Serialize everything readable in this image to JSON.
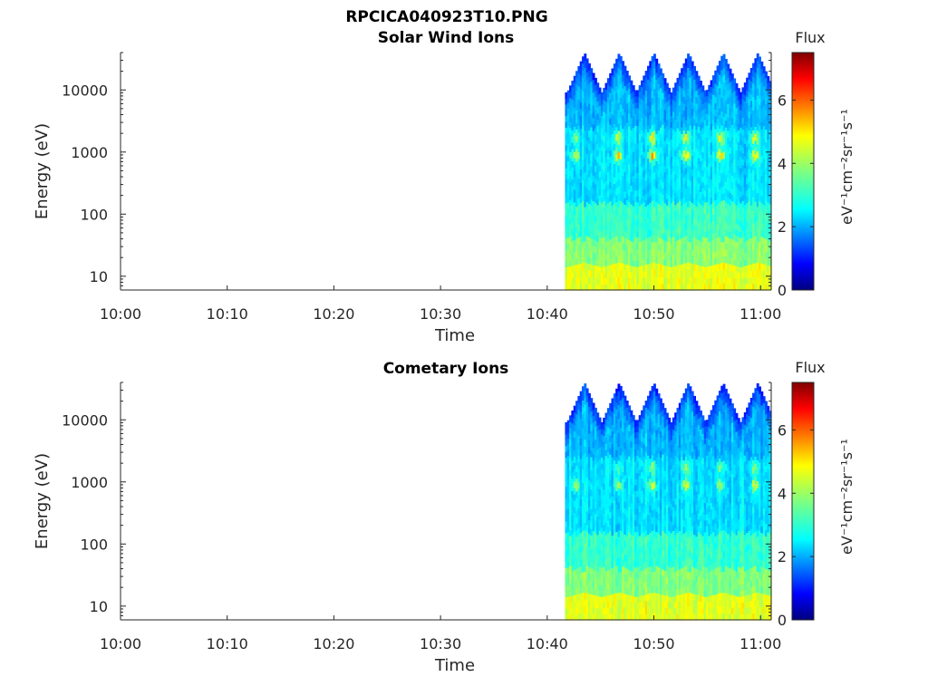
{
  "figure": {
    "title": "RPCICA040923T10.PNG"
  },
  "chart_data": [
    {
      "type": "heatmap",
      "title": "Solar Wind Ions",
      "xlabel": "Time",
      "ylabel": "Energy (eV)",
      "x_range": [
        "10:00",
        "11:01"
      ],
      "x_ticks": [
        "10:00",
        "10:10",
        "10:20",
        "10:30",
        "10:40",
        "10:50",
        "11:00"
      ],
      "y_scale": "log",
      "y_range": [
        6,
        40000
      ],
      "y_ticks": [
        "10",
        "100",
        "1000",
        "10000"
      ],
      "data_start": "10:41:40",
      "colorbar": {
        "label": "Flux",
        "unit": "eV⁻¹cm⁻²sr⁻¹s⁻¹",
        "range": [
          0,
          7.5
        ],
        "ticks": [
          "0",
          "2",
          "4",
          "6"
        ],
        "colormap": "jet"
      },
      "sweep_peaks": [
        "10:43:30",
        "10:46:45",
        "10:50:00",
        "10:53:15",
        "10:56:30",
        "10:59:45"
      ],
      "bands": [
        {
          "energy_range": [
            6,
            15
          ],
          "flux": 4.5
        },
        {
          "energy_range": [
            15,
            40
          ],
          "flux": 3.8
        },
        {
          "energy_range": [
            40,
            150
          ],
          "flux": 3.2
        },
        {
          "energy_range": [
            150,
            2500
          ],
          "flux": 2.6
        },
        {
          "energy_range": [
            2500,
            40000
          ],
          "flux": 2.3
        }
      ],
      "flux_peaks": [
        {
          "time": "10:42:40",
          "energy": 900,
          "flux": 4.5
        },
        {
          "time": "10:42:40",
          "energy": 1700,
          "flux": 3.8
        },
        {
          "time": "10:46:40",
          "energy": 900,
          "flux": 5.0
        },
        {
          "time": "10:46:40",
          "energy": 1700,
          "flux": 4.6
        },
        {
          "time": "10:49:50",
          "energy": 900,
          "flux": 5.4
        },
        {
          "time": "10:49:50",
          "energy": 1700,
          "flux": 5.2
        },
        {
          "time": "10:53:00",
          "energy": 900,
          "flux": 5.4
        },
        {
          "time": "10:53:00",
          "energy": 1700,
          "flux": 5.1
        },
        {
          "time": "10:56:15",
          "energy": 900,
          "flux": 5.0
        },
        {
          "time": "10:56:15",
          "energy": 1700,
          "flux": 4.7
        },
        {
          "time": "10:59:30",
          "energy": 900,
          "flux": 5.2
        },
        {
          "time": "10:59:30",
          "energy": 1700,
          "flux": 4.8
        }
      ]
    },
    {
      "type": "heatmap",
      "title": "Cometary Ions",
      "xlabel": "Time",
      "ylabel": "Energy (eV)",
      "x_range": [
        "10:00",
        "11:01"
      ],
      "x_ticks": [
        "10:00",
        "10:10",
        "10:20",
        "10:30",
        "10:40",
        "10:50",
        "11:00"
      ],
      "y_scale": "log",
      "y_range": [
        6,
        40000
      ],
      "y_ticks": [
        "10",
        "100",
        "1000",
        "10000"
      ],
      "data_start": "10:41:40",
      "colorbar": {
        "label": "Flux",
        "unit": "eV⁻¹cm⁻²sr⁻¹s⁻¹",
        "range": [
          0,
          7.5
        ],
        "ticks": [
          "0",
          "2",
          "4",
          "6"
        ],
        "colormap": "jet"
      },
      "sweep_peaks": [
        "10:43:30",
        "10:46:45",
        "10:50:00",
        "10:53:15",
        "10:56:30",
        "10:59:45"
      ],
      "bands": [
        {
          "energy_range": [
            6,
            15
          ],
          "flux": 4.5
        },
        {
          "energy_range": [
            15,
            40
          ],
          "flux": 3.8
        },
        {
          "energy_range": [
            40,
            150
          ],
          "flux": 3.2
        },
        {
          "energy_range": [
            150,
            2500
          ],
          "flux": 2.6
        },
        {
          "energy_range": [
            2500,
            40000
          ],
          "flux": 2.3
        }
      ],
      "flux_peaks": [
        {
          "time": "10:42:40",
          "energy": 900,
          "flux": 4.2
        },
        {
          "time": "10:46:40",
          "energy": 900,
          "flux": 4.5
        },
        {
          "time": "10:46:40",
          "energy": 1700,
          "flux": 3.8
        },
        {
          "time": "10:49:50",
          "energy": 900,
          "flux": 4.7
        },
        {
          "time": "10:49:50",
          "energy": 1700,
          "flux": 4.2
        },
        {
          "time": "10:53:00",
          "energy": 900,
          "flux": 4.7
        },
        {
          "time": "10:53:00",
          "energy": 1700,
          "flux": 4.0
        },
        {
          "time": "10:56:15",
          "energy": 900,
          "flux": 4.4
        },
        {
          "time": "10:56:15",
          "energy": 1700,
          "flux": 3.8
        },
        {
          "time": "10:59:30",
          "energy": 900,
          "flux": 4.6
        },
        {
          "time": "10:59:30",
          "energy": 1700,
          "flux": 3.9
        }
      ]
    }
  ]
}
